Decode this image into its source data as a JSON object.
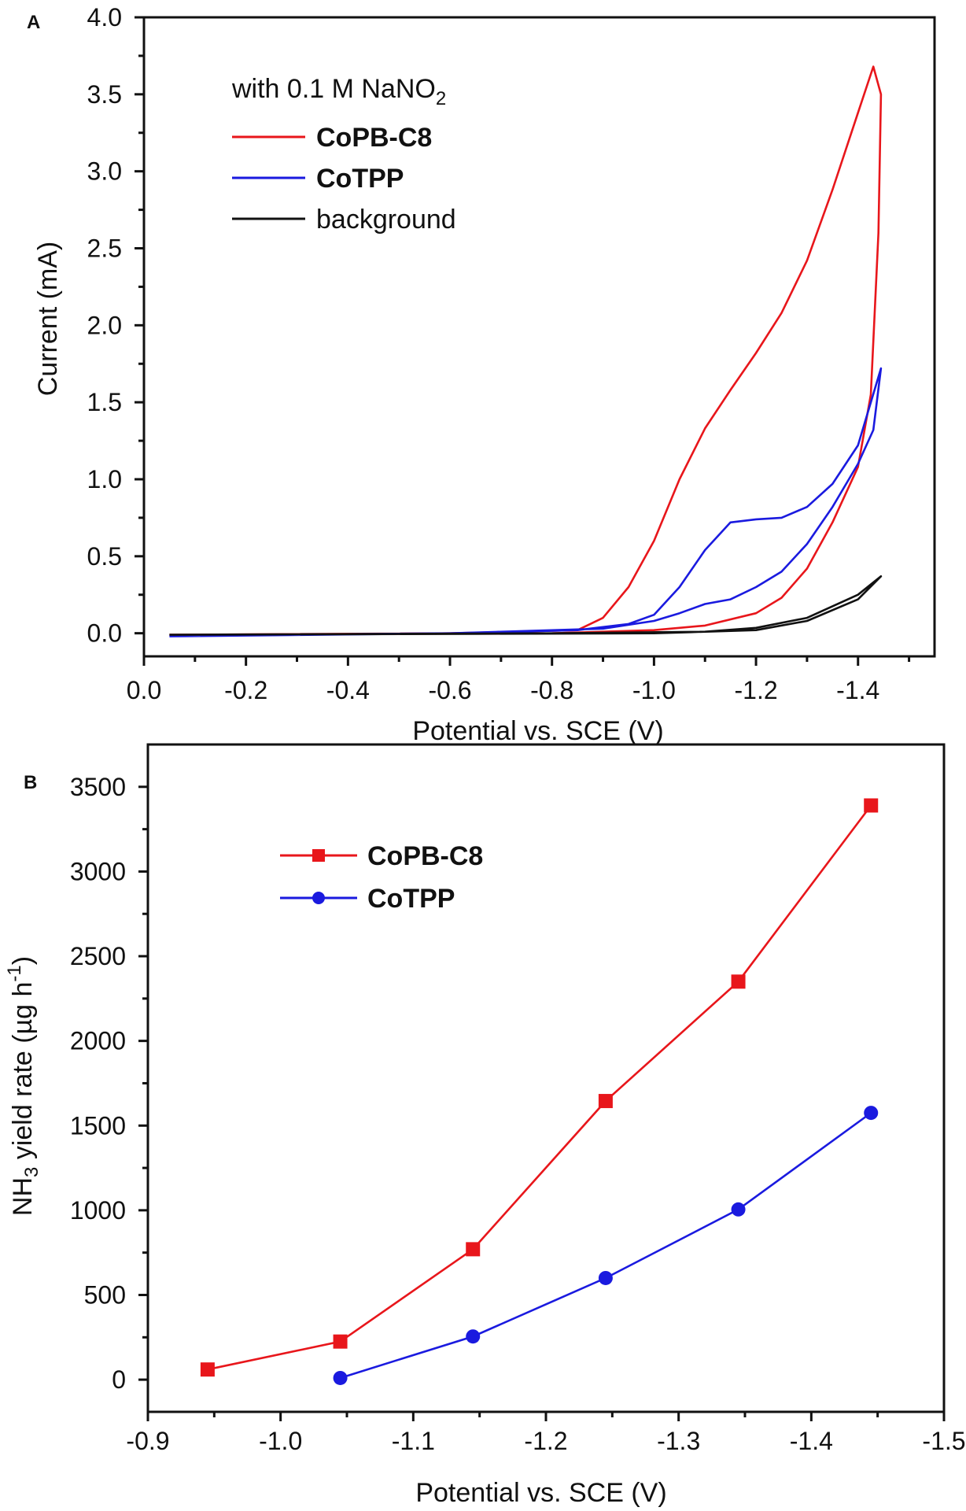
{
  "chart_data": [
    {
      "panel_label": "A",
      "type": "line",
      "xlabel": "Potential vs. SCE (V)",
      "ylabel": "Current (mA)",
      "xlim": [
        0.0,
        -1.55
      ],
      "ylim": [
        -0.15,
        4.0
      ],
      "xticks": [
        "0.0",
        "-0.2",
        "-0.4",
        "-0.6",
        "-0.8",
        "-1.0",
        "-1.2",
        "-1.4"
      ],
      "xtick_values": [
        0,
        -0.2,
        -0.4,
        -0.6,
        -0.8,
        -1.0,
        -1.2,
        -1.4
      ],
      "yticks": [
        "0.0",
        "0.5",
        "1.0",
        "1.5",
        "2.0",
        "2.5",
        "3.0",
        "3.5",
        "4.0"
      ],
      "ytick_values": [
        0,
        0.5,
        1,
        1.5,
        2,
        2.5,
        3,
        3.5,
        4
      ],
      "legend_title": "with 0.1 M NaNO",
      "legend_title_sub": "2",
      "legend_position": "top-left",
      "series": [
        {
          "name": "CoPB-C8",
          "color": "#e8161b",
          "points": [
            [
              -0.05,
              -0.01
            ],
            [
              -0.6,
              0.0
            ],
            [
              -0.85,
              0.02
            ],
            [
              -0.9,
              0.1
            ],
            [
              -0.95,
              0.3
            ],
            [
              -1.0,
              0.6
            ],
            [
              -1.05,
              1.0
            ],
            [
              -1.1,
              1.33
            ],
            [
              -1.15,
              1.58
            ],
            [
              -1.2,
              1.82
            ],
            [
              -1.25,
              2.08
            ],
            [
              -1.3,
              2.42
            ],
            [
              -1.35,
              2.88
            ],
            [
              -1.4,
              3.38
            ],
            [
              -1.43,
              3.68
            ],
            [
              -1.445,
              3.5
            ],
            [
              -1.44,
              2.6
            ],
            [
              -1.425,
              1.55
            ],
            [
              -1.4,
              1.08
            ],
            [
              -1.35,
              0.72
            ],
            [
              -1.3,
              0.42
            ],
            [
              -1.25,
              0.23
            ],
            [
              -1.2,
              0.13
            ],
            [
              -1.1,
              0.05
            ],
            [
              -1.0,
              0.02
            ],
            [
              -0.8,
              0.0
            ],
            [
              -0.05,
              -0.01
            ]
          ]
        },
        {
          "name": "CoTPP",
          "color": "#1a1adf",
          "points": [
            [
              -0.05,
              -0.015
            ],
            [
              -0.6,
              0.0
            ],
            [
              -0.85,
              0.02
            ],
            [
              -0.95,
              0.06
            ],
            [
              -1.0,
              0.12
            ],
            [
              -1.05,
              0.3
            ],
            [
              -1.1,
              0.54
            ],
            [
              -1.15,
              0.72
            ],
            [
              -1.2,
              0.74
            ],
            [
              -1.25,
              0.75
            ],
            [
              -1.3,
              0.82
            ],
            [
              -1.35,
              0.97
            ],
            [
              -1.4,
              1.22
            ],
            [
              -1.445,
              1.72
            ],
            [
              -1.43,
              1.32
            ],
            [
              -1.4,
              1.1
            ],
            [
              -1.35,
              0.82
            ],
            [
              -1.3,
              0.58
            ],
            [
              -1.25,
              0.4
            ],
            [
              -1.2,
              0.3
            ],
            [
              -1.15,
              0.22
            ],
            [
              -1.1,
              0.19
            ],
            [
              -1.05,
              0.13
            ],
            [
              -1.0,
              0.08
            ],
            [
              -0.9,
              0.03
            ],
            [
              -0.6,
              0.0
            ],
            [
              -0.05,
              -0.02
            ]
          ]
        },
        {
          "name": "background",
          "color": "#111111",
          "points": [
            [
              -0.05,
              -0.01
            ],
            [
              -0.8,
              0.0
            ],
            [
              -1.1,
              0.01
            ],
            [
              -1.2,
              0.035
            ],
            [
              -1.3,
              0.1
            ],
            [
              -1.4,
              0.25
            ],
            [
              -1.445,
              0.37
            ],
            [
              -1.4,
              0.22
            ],
            [
              -1.3,
              0.08
            ],
            [
              -1.2,
              0.02
            ],
            [
              -1.0,
              0.0
            ],
            [
              -0.05,
              -0.01
            ]
          ]
        }
      ]
    },
    {
      "panel_label": "B",
      "type": "line",
      "xlabel": "Potential vs. SCE (V)",
      "ylabel": "NH",
      "ylabel_sub": "3",
      "ylabel_rest": " yield rate (µg h",
      "ylabel_sup": "-1",
      "ylabel_end": ")",
      "xlim": [
        -0.9,
        -1.5
      ],
      "ylim": [
        -190,
        3750
      ],
      "xticks": [
        "-0.9",
        "-1.0",
        "-1.1",
        "-1.2",
        "-1.3",
        "-1.4",
        "-1.5"
      ],
      "xtick_values": [
        -0.9,
        -1.0,
        -1.1,
        -1.2,
        -1.3,
        -1.4,
        -1.5
      ],
      "yticks": [
        "0",
        "500",
        "1000",
        "1500",
        "2000",
        "2500",
        "3000",
        "3500"
      ],
      "ytick_values": [
        0,
        500,
        1000,
        1500,
        2000,
        2500,
        3000,
        3500
      ],
      "legend_position": "top-left",
      "series": [
        {
          "name": "CoPB-C8",
          "color": "#e8161b",
          "marker": "square",
          "x": [
            -0.945,
            -1.045,
            -1.145,
            -1.245,
            -1.345,
            -1.445
          ],
          "y": [
            60,
            225,
            770,
            1645,
            2350,
            3390
          ]
        },
        {
          "name": "CoTPP",
          "color": "#1a1adf",
          "marker": "circle",
          "x": [
            -1.045,
            -1.145,
            -1.245,
            -1.345,
            -1.445
          ],
          "y": [
            10,
            255,
            600,
            1005,
            1575
          ]
        }
      ]
    }
  ]
}
